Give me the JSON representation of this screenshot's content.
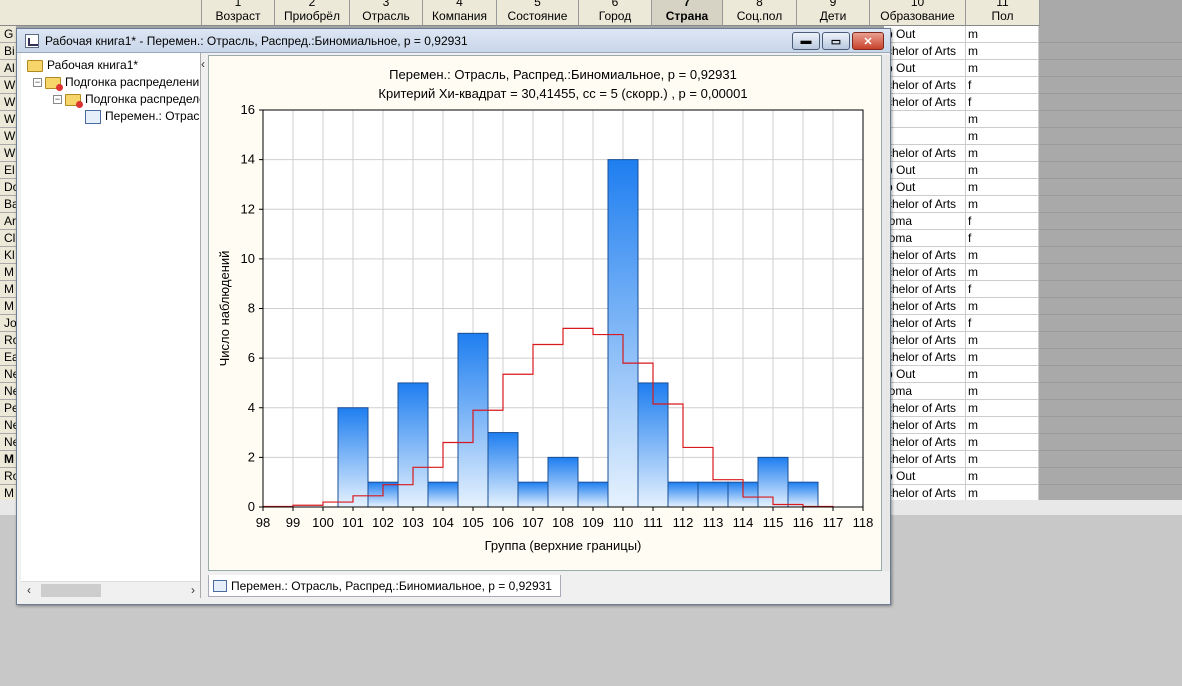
{
  "sheet": {
    "columns": [
      {
        "num": "1",
        "name": "Возраст"
      },
      {
        "num": "2",
        "name": "Приобрёл"
      },
      {
        "num": "3",
        "name": "Отрасль"
      },
      {
        "num": "4",
        "name": "Компания"
      },
      {
        "num": "5",
        "name": "Состояние"
      },
      {
        "num": "6",
        "name": "Город"
      },
      {
        "num": "7",
        "name": "Страна"
      },
      {
        "num": "8",
        "name": "Соц.пол"
      },
      {
        "num": "9",
        "name": "Дети"
      },
      {
        "num": "10",
        "name": "Образование"
      },
      {
        "num": "11",
        "name": "Пол"
      }
    ],
    "left_rows": [
      "G",
      "Bi",
      "Al",
      "W",
      "W",
      "W",
      "W",
      "W",
      "El",
      "Do",
      "Ba",
      "Ar",
      "Cl",
      "Kl",
      "M",
      "M",
      "M",
      "Jo",
      "Ro",
      "Ea",
      "Ne",
      "Ne",
      "Pe",
      "Ne",
      "Ne",
      "M",
      "Ro",
      "M"
    ],
    "right_rows": [
      {
        "edu": "p Out",
        "sex": "m"
      },
      {
        "edu": "chelor of Arts",
        "sex": "m"
      },
      {
        "edu": "p Out",
        "sex": "m"
      },
      {
        "edu": "chelor of Arts",
        "sex": "f"
      },
      {
        "edu": "chelor of Arts",
        "sex": "f"
      },
      {
        "edu": "",
        "sex": "m"
      },
      {
        "edu": "",
        "sex": "m"
      },
      {
        "edu": "chelor of Arts",
        "sex": "m"
      },
      {
        "edu": "p Out",
        "sex": "m"
      },
      {
        "edu": "p Out",
        "sex": "m"
      },
      {
        "edu": "chelor of Arts",
        "sex": "m"
      },
      {
        "edu": "loma",
        "sex": "f"
      },
      {
        "edu": "loma",
        "sex": "f"
      },
      {
        "edu": "chelor of Arts",
        "sex": "m"
      },
      {
        "edu": "chelor of Arts",
        "sex": "m"
      },
      {
        "edu": "chelor of Arts",
        "sex": "f"
      },
      {
        "edu": "chelor of Arts",
        "sex": "m"
      },
      {
        "edu": "chelor of Arts",
        "sex": "f"
      },
      {
        "edu": "chelor of Arts",
        "sex": "m"
      },
      {
        "edu": "chelor of Arts",
        "sex": "m"
      },
      {
        "edu": "p Out",
        "sex": "m"
      },
      {
        "edu": "loma",
        "sex": "m"
      },
      {
        "edu": "chelor of Arts",
        "sex": "m"
      },
      {
        "edu": "chelor of Arts",
        "sex": "m"
      },
      {
        "edu": "chelor of Arts",
        "sex": "m"
      },
      {
        "edu": "chelor of Arts",
        "sex": "m"
      },
      {
        "edu": "p Out",
        "sex": "m"
      },
      {
        "edu": "chelor of Arts",
        "sex": "m"
      }
    ]
  },
  "window": {
    "title": "Рабочая книга1* - Перемен.: Отрасль, Распред.:Биномиальное, p = 0,92931",
    "buttons": {
      "minimize": "▬",
      "restore": "▭",
      "close": "✕"
    }
  },
  "tree": {
    "root": "Рабочая книга1*",
    "level1": "Подгонка распределени",
    "level2": "Подгонка распределе",
    "level3": "Перемен.: Отрас"
  },
  "tab": {
    "label": "Перемен.: Отрасль, Распред.:Биномиальное, p = 0,92931"
  },
  "chart_data": {
    "type": "bar",
    "title": "Перемен.: Отрасль, Распред.:Биномиальное, p = 0,92931",
    "subtitle": "Критерий Хи-квадрат = 30,41455, сс = 5 (скорр.) , p = 0,00001",
    "xlabel": "Группа (верхние границы)",
    "ylabel": "Число наблюдений",
    "x_ticks": [
      98,
      99,
      100,
      101,
      102,
      103,
      104,
      105,
      106,
      107,
      108,
      109,
      110,
      111,
      112,
      113,
      114,
      115,
      116,
      117,
      118
    ],
    "ylim": [
      0,
      16
    ],
    "y_ticks": [
      0,
      2,
      4,
      6,
      8,
      10,
      12,
      14,
      16
    ],
    "bars": [
      {
        "from": 100.5,
        "to": 101.5,
        "value": 4
      },
      {
        "from": 101.5,
        "to": 102.5,
        "value": 1
      },
      {
        "from": 102.5,
        "to": 103.5,
        "value": 5
      },
      {
        "from": 103.5,
        "to": 104.5,
        "value": 1
      },
      {
        "from": 104.5,
        "to": 105.5,
        "value": 7
      },
      {
        "from": 105.5,
        "to": 106.5,
        "value": 3
      },
      {
        "from": 106.5,
        "to": 107.5,
        "value": 1
      },
      {
        "from": 107.5,
        "to": 108.5,
        "value": 2
      },
      {
        "from": 108.5,
        "to": 109.5,
        "value": 1
      },
      {
        "from": 109.5,
        "to": 110.5,
        "value": 14
      },
      {
        "from": 110.5,
        "to": 111.5,
        "value": 5
      },
      {
        "from": 111.5,
        "to": 112.5,
        "value": 1
      },
      {
        "from": 112.5,
        "to": 113.5,
        "value": 1
      },
      {
        "from": 113.5,
        "to": 114.5,
        "value": 1
      },
      {
        "from": 114.5,
        "to": 115.5,
        "value": 2
      },
      {
        "from": 115.5,
        "to": 116.5,
        "value": 1
      }
    ],
    "expected_step": {
      "x": [
        98,
        99,
        100,
        101,
        102,
        103,
        104,
        105,
        106,
        107,
        108,
        109,
        110,
        111,
        112,
        113,
        114,
        115,
        116,
        117
      ],
      "values": [
        0.02,
        0.07,
        0.2,
        0.45,
        0.9,
        1.6,
        2.6,
        3.9,
        5.35,
        6.55,
        7.2,
        6.95,
        5.8,
        4.15,
        2.4,
        1.1,
        0.4,
        0.1,
        0.02,
        0
      ]
    },
    "grid": true,
    "colors": {
      "bar_top": "#1e7ef0",
      "bar_bottom": "#e6f2fe",
      "bar_edge": "#1a4f95",
      "expected_line": "#d8191e"
    }
  }
}
